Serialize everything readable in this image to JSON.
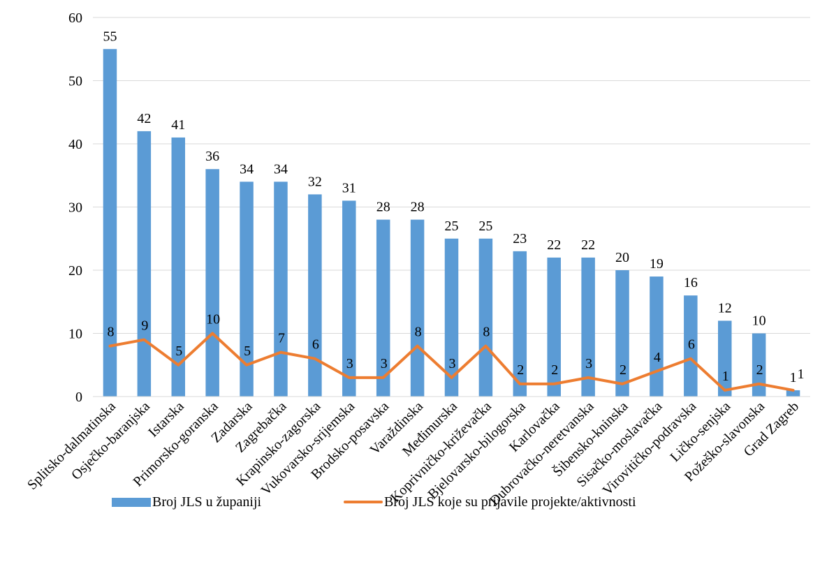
{
  "chart_data": {
    "type": "bar",
    "categories": [
      "Splitsko-dalmatinska",
      "Osječko-baranjska",
      "Istarska",
      "Primorsko-goranska",
      "Zadarska",
      "Zagrebačka",
      "Krapinsko-zagorska",
      "Vukovarsko-srijemska",
      "Brodsko-posavska",
      "Varaždinska",
      "Međimurska",
      "Koprivničko-križevačka",
      "Bjelovarsko-bilogorska",
      "Karlovačka",
      "Dubrovačko-neretvanska",
      "Šibensko-kninska",
      "Sisačko-moslavačka",
      "Virovitičko-podravska",
      "Ličko-senjska",
      "Požeško-slavonska",
      "Grad Zagreb"
    ],
    "series": [
      {
        "name": "Broj JLS u županiji",
        "type": "bar",
        "color": "#5b9bd5",
        "values": [
          55,
          42,
          41,
          36,
          34,
          34,
          32,
          31,
          28,
          28,
          25,
          25,
          23,
          22,
          22,
          20,
          19,
          16,
          12,
          10,
          1
        ]
      },
      {
        "name": "Broj JLS koje su prijavile projekte/aktivnosti",
        "type": "line",
        "color": "#ed7d31",
        "values": [
          8,
          9,
          5,
          10,
          5,
          7,
          6,
          3,
          3,
          8,
          3,
          8,
          2,
          2,
          3,
          2,
          4,
          6,
          1,
          2,
          1
        ]
      }
    ],
    "ylim": [
      0,
      60
    ],
    "yticks": [
      "0",
      "10",
      "20",
      "30",
      "40",
      "50",
      "60"
    ],
    "grid": true,
    "legend_position": "bottom",
    "title": "",
    "xlabel": "",
    "ylabel": ""
  }
}
